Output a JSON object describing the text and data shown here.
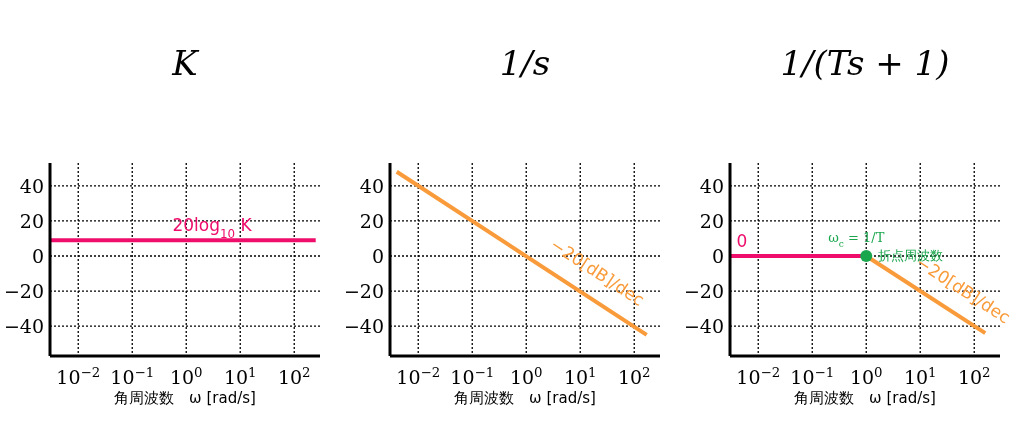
{
  "chart_data": [
    {
      "type": "line",
      "title": "K",
      "xlabel": "角周波数　ω [rad/s]",
      "log": "x",
      "grid": true,
      "line_style": "solid",
      "xlim": [
        0.003,
        300
      ],
      "ylim": [
        -57,
        53
      ],
      "xticks": [
        {
          "value": 0.01,
          "label": "10$^{−2}$"
        },
        {
          "value": 0.1,
          "label": "10$^{−1}$"
        },
        {
          "value": 1,
          "label": "10$^{0}$"
        },
        {
          "value": 10,
          "label": "10$^{1}$"
        },
        {
          "value": 100,
          "label": "10$^{2}$"
        }
      ],
      "yticks": [
        -40,
        -20,
        0,
        20,
        40
      ],
      "series": [
        {
          "color": "#ee0d6b",
          "x": [
            0.003,
            250
          ],
          "values": [
            9,
            9
          ]
        }
      ],
      "annotations": [
        {
          "text": "20log$_{10}$ K",
          "x": 3,
          "y": 9
        }
      ]
    },
    {
      "type": "line",
      "title": "1/s",
      "xlabel": "角周波数　ω [rad/s]",
      "log": "x",
      "grid": true,
      "line_style": "solid",
      "xlim": [
        0.003,
        300
      ],
      "ylim": [
        -57,
        53
      ],
      "xticks": [
        {
          "value": 0.01,
          "label": "10$^{−2}$"
        },
        {
          "value": 0.1,
          "label": "10$^{−1}$"
        },
        {
          "value": 1,
          "label": "10$^{0}$"
        },
        {
          "value": 10,
          "label": "10$^{1}$"
        },
        {
          "value": 100,
          "label": "10$^{2}$"
        }
      ],
      "yticks": [
        -40,
        -20,
        0,
        20,
        40
      ],
      "series": [
        {
          "color": "#f99b3a",
          "x": [
            0.004,
            170
          ],
          "values": [
            48,
            -45
          ]
        }
      ],
      "annotations": [
        {
          "text": "−20[dB]/dec",
          "x": 10,
          "y": -20
        }
      ]
    },
    {
      "type": "line",
      "title": "1/(Ts + 1)",
      "xlabel": "角周波数　ω [rad/s]",
      "log": "x",
      "grid": true,
      "line_style": "solid",
      "xlim": [
        0.003,
        300
      ],
      "ylim": [
        -57,
        53
      ],
      "xticks": [
        {
          "value": 0.01,
          "label": "10$^{−2}$"
        },
        {
          "value": 0.1,
          "label": "10$^{−1}$"
        },
        {
          "value": 1,
          "label": "10$^{0}$"
        },
        {
          "value": 10,
          "label": "10$^{1}$"
        },
        {
          "value": 100,
          "label": "10$^{2}$"
        }
      ],
      "yticks": [
        -40,
        -20,
        0,
        20,
        40
      ],
      "series": [
        {
          "color": "#ee0d6b",
          "x": [
            0.003,
            1
          ],
          "values": [
            0,
            0
          ]
        },
        {
          "color": "#f99b3a",
          "x": [
            1,
            160
          ],
          "values": [
            0,
            -44
          ]
        },
        {
          "type": "scatter",
          "marker": "circle",
          "color": "#1aa64d",
          "x": [
            1
          ],
          "values": [
            0
          ]
        }
      ],
      "annotations": [
        {
          "text": "0",
          "x": 0.005,
          "y": 0
        },
        {
          "text": "ω$_{c}$ = 1/T",
          "x": 1,
          "y": 0
        },
        {
          "text": "折点周波数",
          "x": 1,
          "y": 0
        },
        {
          "text": "−20[dB]/dec",
          "x": 30,
          "y": -30
        }
      ]
    }
  ]
}
